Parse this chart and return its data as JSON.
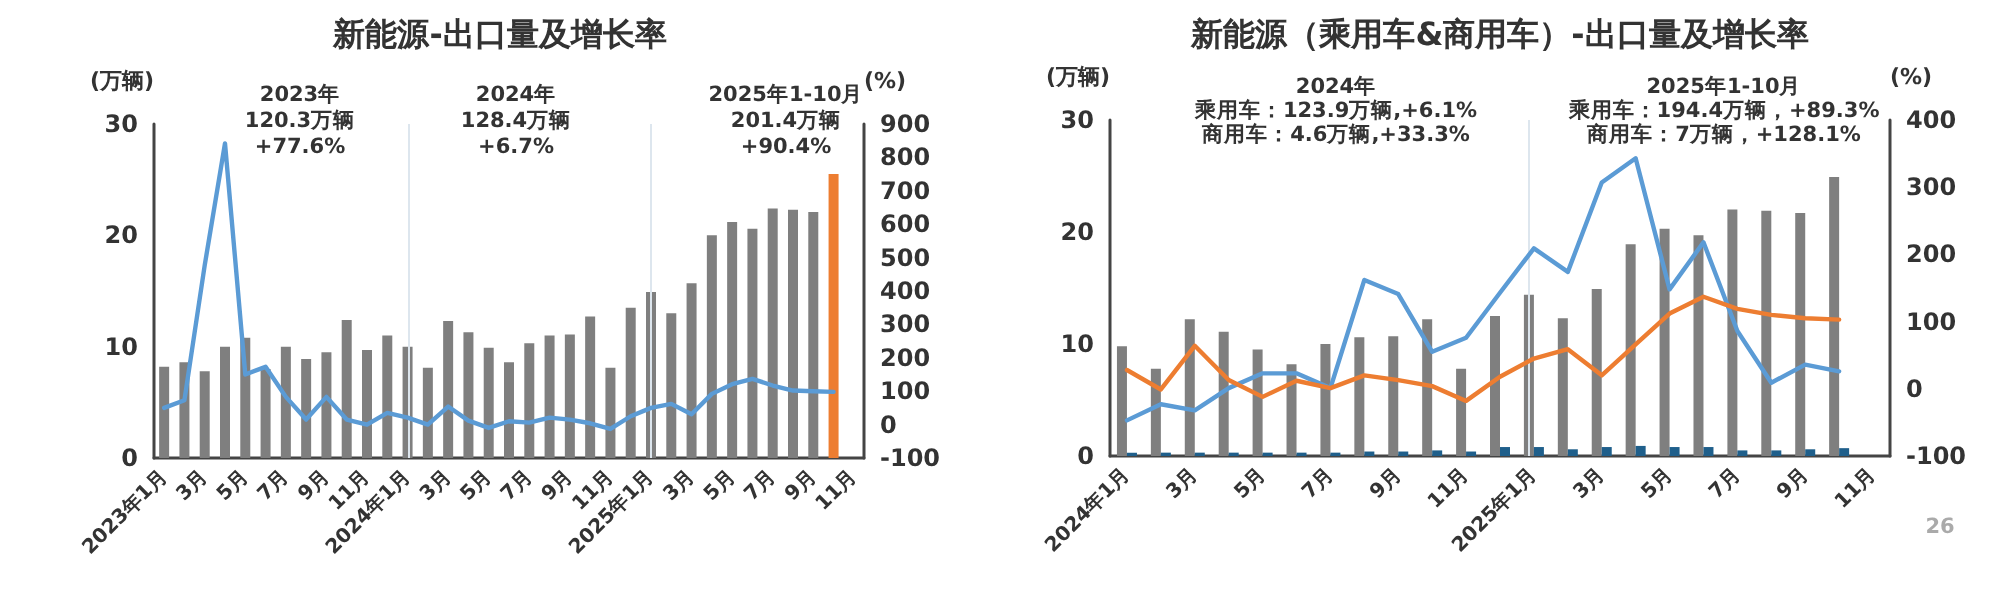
{
  "chart_data": [
    {
      "type": "bar",
      "title": "新能源-出口量及增长率",
      "ylabel": "(万辆)",
      "y2label": "(%)",
      "categories": [
        "2023年1月",
        null,
        "3月",
        null,
        "5月",
        null,
        "7月",
        null,
        "9月",
        null,
        "11月",
        null,
        "2024年1月",
        null,
        "3月",
        null,
        "5月",
        null,
        "7月",
        null,
        "9月",
        null,
        "11月",
        null,
        "2025年1月",
        null,
        "3月",
        null,
        "5月",
        null,
        "7月",
        null,
        "9月",
        null,
        "11月"
      ],
      "series": [
        {
          "color": "#7f7f7f",
          "colors": [
            "#7f7f7f",
            "#7f7f7f",
            "#7f7f7f",
            "#7f7f7f",
            "#7f7f7f",
            "#7f7f7f",
            "#7f7f7f",
            "#7f7f7f",
            "#7f7f7f",
            "#7f7f7f",
            "#7f7f7f",
            "#7f7f7f",
            "#7f7f7f",
            "#7f7f7f",
            "#7f7f7f",
            "#7f7f7f",
            "#7f7f7f",
            "#7f7f7f",
            "#7f7f7f",
            "#7f7f7f",
            "#7f7f7f",
            "#7f7f7f",
            "#7f7f7f",
            "#7f7f7f",
            "#7f7f7f",
            "#7f7f7f",
            "#7f7f7f",
            "#7f7f7f",
            "#7f7f7f",
            "#7f7f7f",
            "#7f7f7f",
            "#7f7f7f",
            "#7f7f7f",
            "#ed7d31",
            null
          ],
          "values": [
            8.2,
            8.6,
            7.8,
            10.0,
            10.8,
            8.0,
            10.0,
            8.9,
            9.5,
            12.4,
            9.7,
            11.0,
            10.0,
            8.1,
            12.3,
            11.3,
            9.9,
            8.6,
            10.3,
            11.0,
            11.1,
            12.7,
            8.1,
            13.5,
            14.9,
            13.0,
            15.7,
            20.0,
            21.2,
            20.6,
            22.4,
            22.3,
            22.1,
            25.5,
            null
          ]
        },
        {
          "type": "line",
          "axis": "y2",
          "color": "#5b9bd5",
          "values": [
            50,
            73,
            477,
            842,
            150,
            173,
            83,
            15,
            83,
            15,
            0,
            35,
            21,
            0,
            54,
            12,
            -10,
            10,
            6,
            21,
            15,
            4,
            -13,
            25,
            50,
            62,
            31,
            92,
            121,
            137,
            117,
            102,
            100,
            98,
            null
          ]
        }
      ],
      "ylim": [
        0,
        30
      ],
      "yticks": [
        0,
        10,
        20,
        30
      ],
      "y2lim": [
        -100,
        900
      ],
      "y2ticks": [
        -100,
        0,
        100,
        200,
        300,
        400,
        500,
        600,
        700,
        800,
        900
      ],
      "ref_lines": [
        {
          "axis": "x",
          "value": "2024年1月",
          "color": "#dde6ee"
        },
        {
          "axis": "x",
          "value": "2025年1月",
          "color": "#dde6ee"
        }
      ],
      "annotations": [
        "2023年",
        "120.3万辆",
        "+77.6%",
        "2024年",
        "128.4万辆",
        "+6.7%",
        "2025年1-10月",
        "201.4万辆",
        "+90.4%"
      ],
      "marker": "none",
      "line_style": "solid",
      "grid": false
    },
    {
      "type": "bar",
      "title": "新能源（乘用车&商用车）-出口量及增长率",
      "ylabel": "(万辆)",
      "y2label": "(%)",
      "categories": [
        "2024年1月",
        null,
        "3月",
        null,
        "5月",
        null,
        "7月",
        null,
        "9月",
        null,
        "11月",
        null,
        "2025年1月",
        null,
        "3月",
        null,
        "5月",
        null,
        "7月",
        null,
        "9月",
        null,
        "11月"
      ],
      "series": [
        {
          "color": "#7f7f7f",
          "values": [
            9.8,
            7.8,
            12.2,
            11.1,
            9.5,
            8.2,
            10.0,
            10.6,
            10.7,
            12.2,
            7.8,
            12.5,
            14.4,
            12.3,
            14.9,
            18.9,
            20.3,
            19.7,
            22.0,
            21.9,
            21.7,
            24.9,
            null
          ]
        },
        {
          "color": "#1f5f8b",
          "values": [
            0.3,
            0.3,
            0.3,
            0.3,
            0.3,
            0.3,
            0.3,
            0.4,
            0.4,
            0.5,
            0.4,
            0.8,
            0.8,
            0.6,
            0.8,
            0.9,
            0.8,
            0.8,
            0.5,
            0.5,
            0.6,
            0.7,
            null
          ]
        },
        {
          "type": "line",
          "axis": "y2",
          "color": "#5b9bd5",
          "values": [
            -47,
            -23,
            -32,
            1,
            23,
            23,
            1,
            162,
            141,
            55,
            76,
            143,
            209,
            174,
            307,
            343,
            148,
            218,
            86,
            9,
            36,
            26,
            null
          ]
        },
        {
          "type": "line",
          "axis": "y2",
          "color": "#ed7d31",
          "values": [
            28,
            -1,
            64,
            13,
            -12,
            12,
            1,
            20,
            13,
            4,
            -18,
            18,
            45,
            59,
            20,
            66,
            112,
            137,
            119,
            110,
            105,
            103,
            null
          ]
        }
      ],
      "ylim": [
        0,
        30
      ],
      "yticks": [
        0,
        10,
        20,
        30
      ],
      "y2lim": [
        -100,
        400
      ],
      "y2ticks": [
        -100,
        0,
        100,
        200,
        300,
        400
      ],
      "ref_lines": [
        {
          "axis": "x",
          "value": "2025年1月",
          "color": "#dde6ee"
        }
      ],
      "annotations": [
        "2024年",
        "乘用车：123.9万辆,+6.1%",
        "商用车：4.6万辆,+33.3%",
        "2025年1-10月",
        "乘用车：194.4万辆，+89.3%",
        "商用车：7万辆，+128.1%",
        "26"
      ],
      "marker": "none",
      "line_style": "solid",
      "grid": false
    }
  ]
}
